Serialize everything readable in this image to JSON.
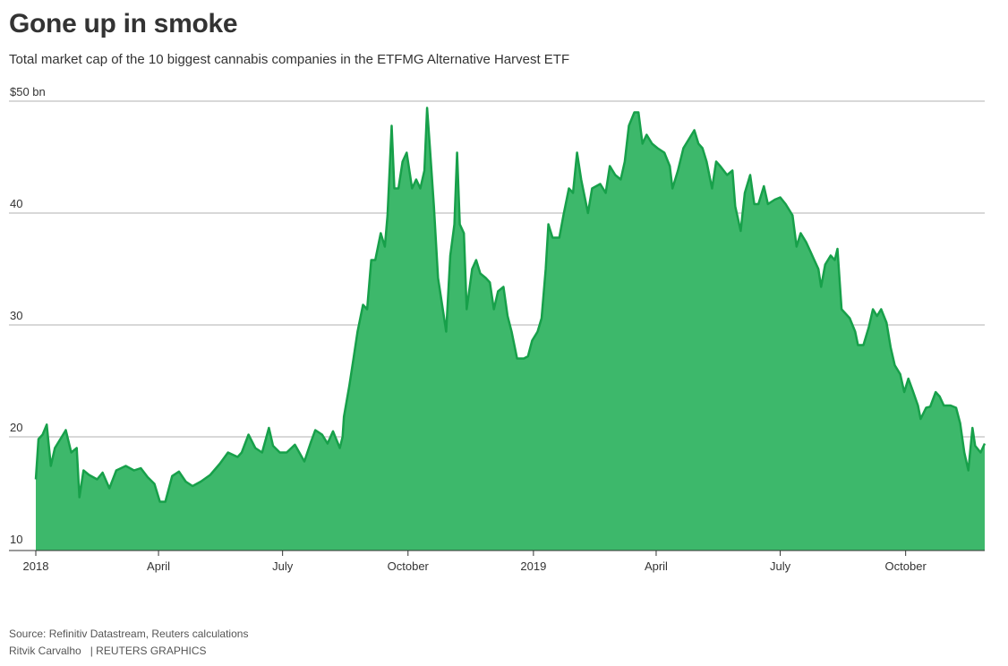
{
  "title": "Gone up in smoke",
  "subtitle": "Total market cap of the 10 biggest cannabis companies in the ETFMG Alternative Harvest ETF",
  "footer": {
    "source": "Source: Refinitiv Datastream, Reuters calculations",
    "author": "Ritvik Carvalho",
    "brand": "| REUTERS GRAPHICS"
  },
  "colors": {
    "fill": "#3db86b",
    "line": "#17a04a",
    "grid": "#cccccc"
  },
  "chart_data": {
    "type": "area",
    "title": "Gone up in smoke",
    "ylabel": "$ bn",
    "xlabel": "",
    "x_unit": "days since 2018-01-01",
    "xlim": [
      0,
      696
    ],
    "ylim": [
      10,
      50
    ],
    "grid": true,
    "y_ticks": [
      {
        "value": 50,
        "label": "$50 bn"
      },
      {
        "value": 40,
        "label": "40"
      },
      {
        "value": 30,
        "label": "30"
      },
      {
        "value": 20,
        "label": "20"
      },
      {
        "value": 10,
        "label": "10"
      }
    ],
    "x_ticks": [
      {
        "value": 0,
        "label": "2018"
      },
      {
        "value": 90,
        "label": "April"
      },
      {
        "value": 181,
        "label": "July"
      },
      {
        "value": 273,
        "label": "October"
      },
      {
        "value": 365,
        "label": "2019"
      },
      {
        "value": 455,
        "label": "April"
      },
      {
        "value": 546,
        "label": "July"
      },
      {
        "value": 638,
        "label": "October"
      }
    ],
    "points": [
      [
        0,
        16.2
      ],
      [
        2,
        19.8
      ],
      [
        5,
        20.2
      ],
      [
        8,
        21.1
      ],
      [
        11,
        17.4
      ],
      [
        14,
        19
      ],
      [
        20,
        20.2
      ],
      [
        22,
        20.6
      ],
      [
        26,
        18.6
      ],
      [
        30,
        19
      ],
      [
        32,
        14.6
      ],
      [
        35,
        17
      ],
      [
        39,
        16.6
      ],
      [
        45,
        16.2
      ],
      [
        49,
        16.8
      ],
      [
        54,
        15.4
      ],
      [
        59,
        17
      ],
      [
        66,
        17.4
      ],
      [
        72,
        17
      ],
      [
        77,
        17.2
      ],
      [
        82,
        16.4
      ],
      [
        87,
        15.8
      ],
      [
        91,
        14.2
      ],
      [
        95,
        14.2
      ],
      [
        100,
        16.5
      ],
      [
        105,
        16.9
      ],
      [
        110,
        16
      ],
      [
        115,
        15.6
      ],
      [
        121,
        16
      ],
      [
        128,
        16.6
      ],
      [
        135,
        17.6
      ],
      [
        141,
        18.6
      ],
      [
        148,
        18.2
      ],
      [
        151,
        18.6
      ],
      [
        156,
        20.2
      ],
      [
        161,
        19
      ],
      [
        166,
        18.6
      ],
      [
        171,
        20.8
      ],
      [
        174,
        19.2
      ],
      [
        179,
        18.6
      ],
      [
        184,
        18.6
      ],
      [
        190,
        19.3
      ],
      [
        197,
        17.8
      ],
      [
        202,
        19.6
      ],
      [
        205,
        20.6
      ],
      [
        210,
        20.2
      ],
      [
        214,
        19.4
      ],
      [
        218,
        20.5
      ],
      [
        223,
        19
      ],
      [
        225,
        20
      ],
      [
        226,
        21.8
      ],
      [
        230,
        24.6
      ],
      [
        233,
        27
      ],
      [
        236,
        29.4
      ],
      [
        240,
        31.8
      ],
      [
        243,
        31.4
      ],
      [
        246,
        35.8
      ],
      [
        249,
        35.8
      ],
      [
        253,
        38.2
      ],
      [
        256,
        37
      ],
      [
        258,
        39.8
      ],
      [
        261,
        47.8
      ],
      [
        263,
        42.2
      ],
      [
        266,
        42.2
      ],
      [
        269,
        44.6
      ],
      [
        272,
        45.4
      ],
      [
        276,
        42.2
      ],
      [
        279,
        43
      ],
      [
        282,
        42.2
      ],
      [
        285,
        43.8
      ],
      [
        287,
        49.4
      ],
      [
        289,
        46
      ],
      [
        292,
        40.6
      ],
      [
        295,
        34.2
      ],
      [
        299,
        31
      ],
      [
        301,
        29.4
      ],
      [
        304,
        36.2
      ],
      [
        307,
        39
      ],
      [
        309,
        45.4
      ],
      [
        311,
        39
      ],
      [
        314,
        38.2
      ],
      [
        316,
        31.4
      ],
      [
        320,
        35
      ],
      [
        323,
        35.8
      ],
      [
        326,
        34.6
      ],
      [
        330,
        34.2
      ],
      [
        333,
        33.8
      ],
      [
        336,
        31.4
      ],
      [
        339,
        33
      ],
      [
        343,
        33.4
      ],
      [
        346,
        30.8
      ],
      [
        349,
        29.4
      ],
      [
        353,
        27
      ],
      [
        358,
        27
      ],
      [
        361,
        27.2
      ],
      [
        364,
        28.6
      ],
      [
        368,
        29.4
      ],
      [
        371,
        30.6
      ],
      [
        374,
        35
      ],
      [
        376,
        39
      ],
      [
        379,
        37.8
      ],
      [
        384,
        37.8
      ],
      [
        387,
        39.8
      ],
      [
        391,
        42.2
      ],
      [
        394,
        41.8
      ],
      [
        397,
        45.4
      ],
      [
        400,
        43
      ],
      [
        405,
        40
      ],
      [
        408,
        42.2
      ],
      [
        414,
        42.6
      ],
      [
        418,
        41.8
      ],
      [
        421,
        44.2
      ],
      [
        425,
        43.4
      ],
      [
        429,
        43
      ],
      [
        432,
        44.6
      ],
      [
        435,
        47.8
      ],
      [
        439,
        49
      ],
      [
        442,
        49
      ],
      [
        445,
        46.2
      ],
      [
        448,
        47
      ],
      [
        452,
        46.2
      ],
      [
        456,
        45.8
      ],
      [
        461,
        45.4
      ],
      [
        465,
        44.2
      ],
      [
        467,
        42.2
      ],
      [
        471,
        43.8
      ],
      [
        475,
        45.8
      ],
      [
        479,
        46.6
      ],
      [
        483,
        47.4
      ],
      [
        486,
        46.2
      ],
      [
        489,
        45.8
      ],
      [
        492,
        44.6
      ],
      [
        496,
        42.2
      ],
      [
        499,
        44.6
      ],
      [
        502,
        44.2
      ],
      [
        507,
        43.4
      ],
      [
        511,
        43.8
      ],
      [
        513,
        40.6
      ],
      [
        517,
        38.4
      ],
      [
        520,
        41.8
      ],
      [
        524,
        43.4
      ],
      [
        527,
        40.8
      ],
      [
        530,
        40.8
      ],
      [
        534,
        42.4
      ],
      [
        537,
        40.8
      ],
      [
        542,
        41.2
      ],
      [
        546,
        41.4
      ],
      [
        550,
        40.8
      ],
      [
        555,
        39.8
      ],
      [
        558,
        37
      ],
      [
        561,
        38.2
      ],
      [
        565,
        37.4
      ],
      [
        568,
        36.6
      ],
      [
        571,
        35.8
      ],
      [
        574,
        35
      ],
      [
        576,
        33.4
      ],
      [
        579,
        35.4
      ],
      [
        583,
        36.2
      ],
      [
        586,
        35.8
      ],
      [
        588,
        36.8
      ],
      [
        591,
        31.4
      ],
      [
        594,
        31
      ],
      [
        597,
        30.6
      ],
      [
        601,
        29.4
      ],
      [
        603,
        28.2
      ],
      [
        607,
        28.2
      ],
      [
        611,
        29.8
      ],
      [
        614,
        31.4
      ],
      [
        617,
        30.8
      ],
      [
        620,
        31.4
      ],
      [
        624,
        30.2
      ],
      [
        627,
        28
      ],
      [
        630,
        26.4
      ],
      [
        634,
        25.6
      ],
      [
        637,
        24
      ],
      [
        640,
        25.2
      ],
      [
        643,
        24.2
      ],
      [
        647,
        22.8
      ],
      [
        649,
        21.6
      ],
      [
        653,
        22.6
      ],
      [
        656,
        22.7
      ],
      [
        660,
        24
      ],
      [
        663,
        23.6
      ],
      [
        666,
        22.8
      ],
      [
        671,
        22.8
      ],
      [
        675,
        22.6
      ],
      [
        678,
        21.2
      ],
      [
        681,
        18.6
      ],
      [
        684,
        17
      ],
      [
        687,
        20.8
      ],
      [
        689,
        19.2
      ],
      [
        693,
        18.6
      ],
      [
        696,
        19.4
      ]
    ]
  }
}
